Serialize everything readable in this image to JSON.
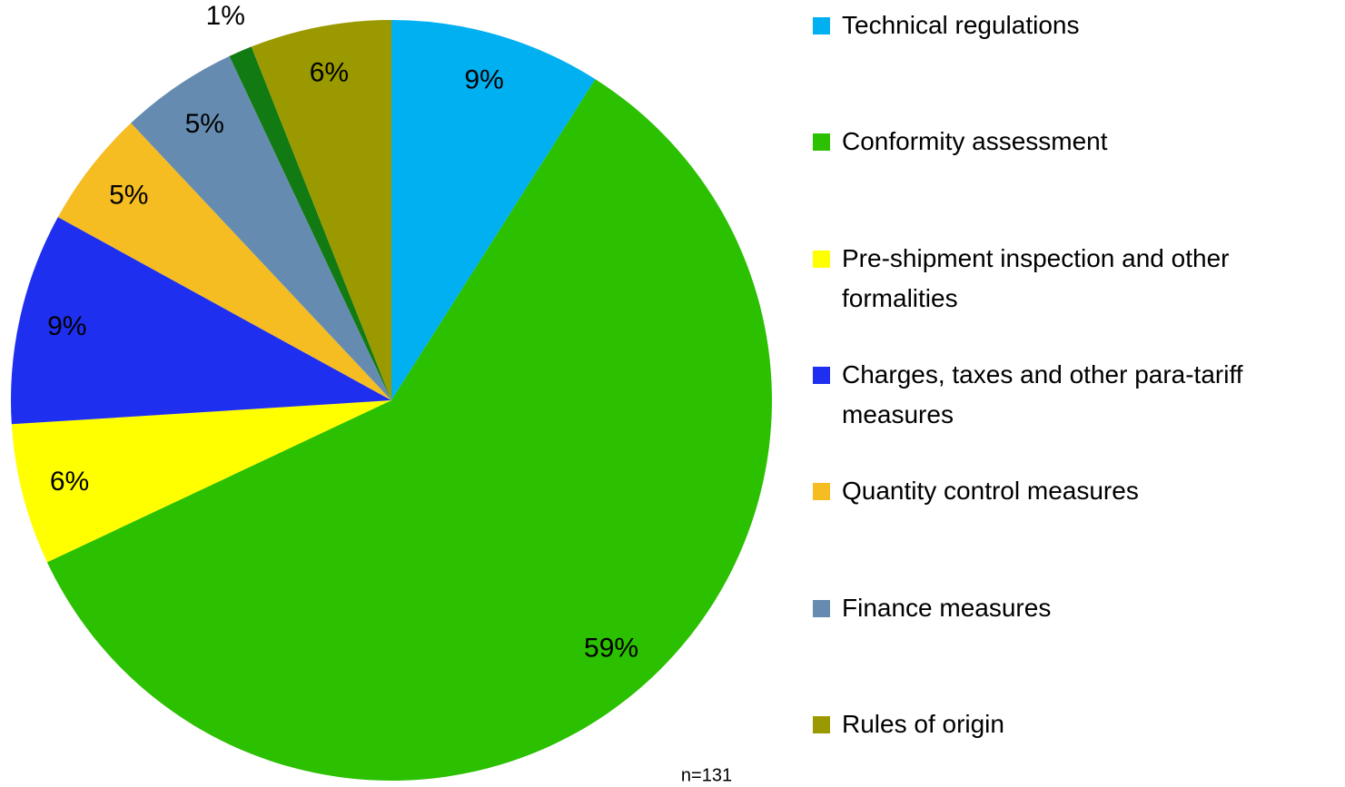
{
  "chart_data": {
    "type": "pie",
    "categories": [
      "Technical regulations",
      "Conformity assessment",
      "Pre-shipment inspection and other formalities",
      "Charges, taxes and other para-tariff measures",
      "Quantity control measures",
      "Finance measures",
      null,
      "Rules of origin"
    ],
    "values": [
      9,
      59,
      6,
      9,
      5,
      5,
      1,
      6
    ],
    "value_labels": [
      "9%",
      "59%",
      "6%",
      "9%",
      "5%",
      "5%",
      "1%",
      "6%"
    ],
    "colors": [
      "#00b0f0",
      "#2bc000",
      "#ffff00",
      "#1f2ff0",
      "#f5bd22",
      "#658cb0",
      "#127a12",
      "#9a9a00"
    ],
    "annotation": "n=131",
    "legend": "right"
  }
}
